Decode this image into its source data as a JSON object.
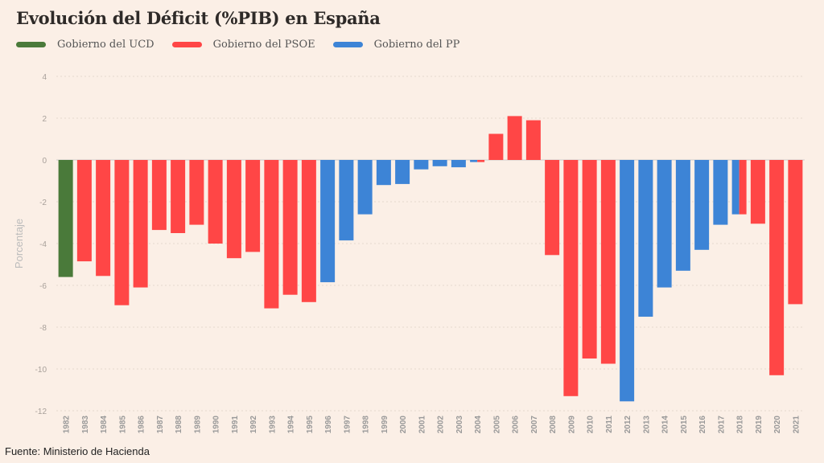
{
  "title": "Evolución del Déficit (%PIB) en España",
  "source": "Fuente: Ministerio de Hacienda",
  "chart_data": {
    "type": "bar",
    "title": "Evolución del Déficit (%PIB) en España",
    "ylabel": "Porcentaje",
    "xlabel": "",
    "ylim": [
      -12,
      4
    ],
    "yticks": [
      4,
      2,
      0,
      -2,
      -4,
      -6,
      -8,
      -10,
      -12
    ],
    "grid": true,
    "legend_position": "top-left",
    "legend": [
      {
        "key": "UCD",
        "label": "Gobierno del UCD",
        "color": "#4a7a3a"
      },
      {
        "key": "PSOE",
        "label": "Gobierno del PSOE",
        "color": "#ff4646"
      },
      {
        "key": "PP",
        "label": "Gobierno del PP",
        "color": "#3d84d6"
      }
    ],
    "categories": [
      "1982",
      "1983",
      "1984",
      "1985",
      "1986",
      "1987",
      "1988",
      "1989",
      "1990",
      "1991",
      "1992",
      "1993",
      "1994",
      "1995",
      "1996",
      "1997",
      "1998",
      "1999",
      "2000",
      "2001",
      "2002",
      "2003",
      "2004",
      "2005",
      "2006",
      "2007",
      "2008",
      "2009",
      "2010",
      "2011",
      "2012",
      "2013",
      "2014",
      "2015",
      "2016",
      "2017",
      "2018",
      "2019",
      "2020",
      "2021"
    ],
    "values": [
      -5.6,
      -4.85,
      -5.55,
      -6.95,
      -6.1,
      -3.35,
      -3.5,
      -3.1,
      -4.0,
      -4.7,
      -4.4,
      -7.1,
      -6.45,
      -6.8,
      -5.85,
      -3.85,
      -2.6,
      -1.2,
      -1.15,
      -0.45,
      -0.3,
      -0.35,
      -0.1,
      1.25,
      2.1,
      1.9,
      -4.55,
      -11.3,
      -9.5,
      -9.75,
      -11.55,
      -7.5,
      -6.1,
      -5.3,
      -4.3,
      -3.1,
      -2.6,
      -3.05,
      -10.3,
      -6.9
    ],
    "government": [
      "UCD",
      "PSOE",
      "PSOE",
      "PSOE",
      "PSOE",
      "PSOE",
      "PSOE",
      "PSOE",
      "PSOE",
      "PSOE",
      "PSOE",
      "PSOE",
      "PSOE",
      "PSOE",
      "PP",
      "PP",
      "PP",
      "PP",
      "PP",
      "PP",
      "PP",
      "PP",
      "PP/PSOE",
      "PSOE",
      "PSOE",
      "PSOE",
      "PSOE",
      "PSOE",
      "PSOE",
      "PSOE",
      "PP",
      "PP",
      "PP",
      "PP",
      "PP",
      "PP",
      "PP/PSOE",
      "PSOE",
      "PSOE",
      "PSOE"
    ]
  }
}
